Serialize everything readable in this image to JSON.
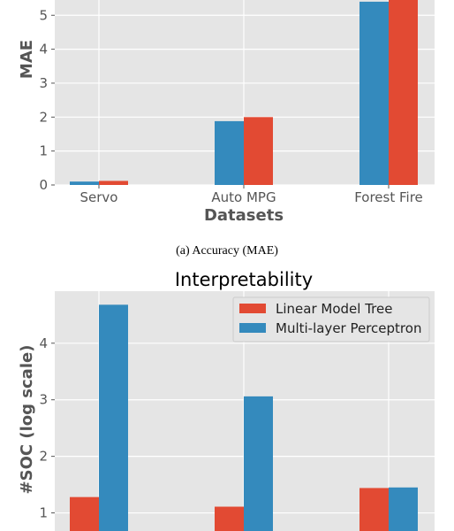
{
  "chart_data": [
    {
      "type": "bar",
      "title": "",
      "xlabel": "Datasets",
      "ylabel": "MAE",
      "categories": [
        "Servo",
        "Auto MPG",
        "Forest Fire"
      ],
      "series": [
        {
          "name": "Multi-layer Perceptron",
          "values": [
            0.1,
            1.88,
            5.4
          ],
          "color": "#348ABD"
        },
        {
          "name": "Linear Model Tree",
          "values": [
            0.12,
            2.0,
            5.6
          ],
          "color": "#E24A33"
        }
      ],
      "yticks": [
        0,
        1,
        2,
        3,
        4,
        5
      ],
      "ylim": [
        0,
        5.45
      ],
      "grid": true,
      "caption": "(a)   Accuracy (MAE)"
    },
    {
      "type": "bar",
      "title": "Interpretability",
      "xlabel": "",
      "ylabel": "#SOC (log scale)",
      "categories": [
        "Servo",
        "Auto MPG",
        "Forest Fire"
      ],
      "series": [
        {
          "name": "Linear Model Tree",
          "values": [
            1.28,
            1.11,
            1.44
          ],
          "color": "#E24A33"
        },
        {
          "name": "Multi-layer Perceptron",
          "values": [
            4.68,
            3.06,
            1.45
          ],
          "color": "#348ABD"
        }
      ],
      "yticks": [
        1,
        2,
        3,
        4
      ],
      "ylim": [
        0.68,
        4.92
      ],
      "grid": true,
      "legend": {
        "placement": "top-right",
        "entries": [
          "Linear Model Tree",
          "Multi-layer Perceptron"
        ]
      }
    }
  ]
}
